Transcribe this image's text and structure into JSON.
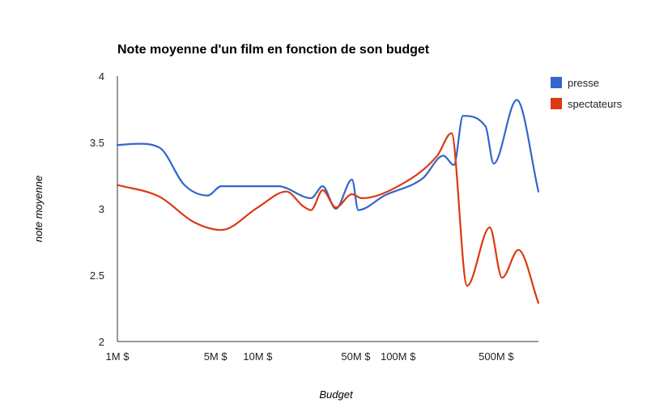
{
  "chart_data": {
    "type": "line",
    "title": "Note moyenne d'un film en fonction de son budget",
    "xlabel": "Budget",
    "ylabel": "note moyenne",
    "x_scale": "log",
    "xlim": [
      1000000,
      1000000000
    ],
    "ylim": [
      2,
      4
    ],
    "x_ticks": [
      {
        "value": 1000000,
        "label": "1M $"
      },
      {
        "value": 5000000,
        "label": "5M $"
      },
      {
        "value": 10000000,
        "label": "10M $"
      },
      {
        "value": 50000000,
        "label": "50M $"
      },
      {
        "value": 100000000,
        "label": "100M $"
      },
      {
        "value": 500000000,
        "label": "500M $"
      }
    ],
    "y_ticks": [
      {
        "value": 2,
        "label": "2"
      },
      {
        "value": 2.5,
        "label": "2.5"
      },
      {
        "value": 3,
        "label": "3"
      },
      {
        "value": 3.5,
        "label": "3.5"
      },
      {
        "value": 4,
        "label": "4"
      }
    ],
    "grid": false,
    "legend_position": "right",
    "series": [
      {
        "name": "presse",
        "color": "#3366cc",
        "points": [
          [
            1000000,
            3.48
          ],
          [
            1400000,
            3.49
          ],
          [
            2000000,
            3.46
          ],
          [
            3000000,
            3.18
          ],
          [
            4400000,
            3.1
          ],
          [
            5500000,
            3.17
          ],
          [
            10000000,
            3.17
          ],
          [
            14000000,
            3.17
          ],
          [
            24000000,
            3.08
          ],
          [
            29000000,
            3.17
          ],
          [
            36000000,
            3.0
          ],
          [
            47000000,
            3.22
          ],
          [
            52000000,
            2.99
          ],
          [
            80000000,
            3.1
          ],
          [
            150000000,
            3.23
          ],
          [
            210000000,
            3.4
          ],
          [
            250000000,
            3.33
          ],
          [
            290000000,
            3.7
          ],
          [
            420000000,
            3.62
          ],
          [
            480000000,
            3.34
          ],
          [
            700000000,
            3.82
          ],
          [
            1000000000,
            3.13
          ]
        ]
      },
      {
        "name": "spectateurs",
        "color": "#dc3912",
        "points": [
          [
            1000000,
            3.18
          ],
          [
            2000000,
            3.09
          ],
          [
            3500000,
            2.9
          ],
          [
            5500000,
            2.84
          ],
          [
            10000000,
            3.01
          ],
          [
            16000000,
            3.13
          ],
          [
            21000000,
            3.02
          ],
          [
            24000000,
            2.99
          ],
          [
            29000000,
            3.14
          ],
          [
            36000000,
            3.01
          ],
          [
            47000000,
            3.11
          ],
          [
            55000000,
            3.08
          ],
          [
            100000000,
            3.17
          ],
          [
            190000000,
            3.4
          ],
          [
            240000000,
            3.57
          ],
          [
            310000000,
            2.42
          ],
          [
            450000000,
            2.86
          ],
          [
            550000000,
            2.48
          ],
          [
            720000000,
            2.69
          ],
          [
            1000000000,
            2.29
          ]
        ]
      }
    ]
  }
}
